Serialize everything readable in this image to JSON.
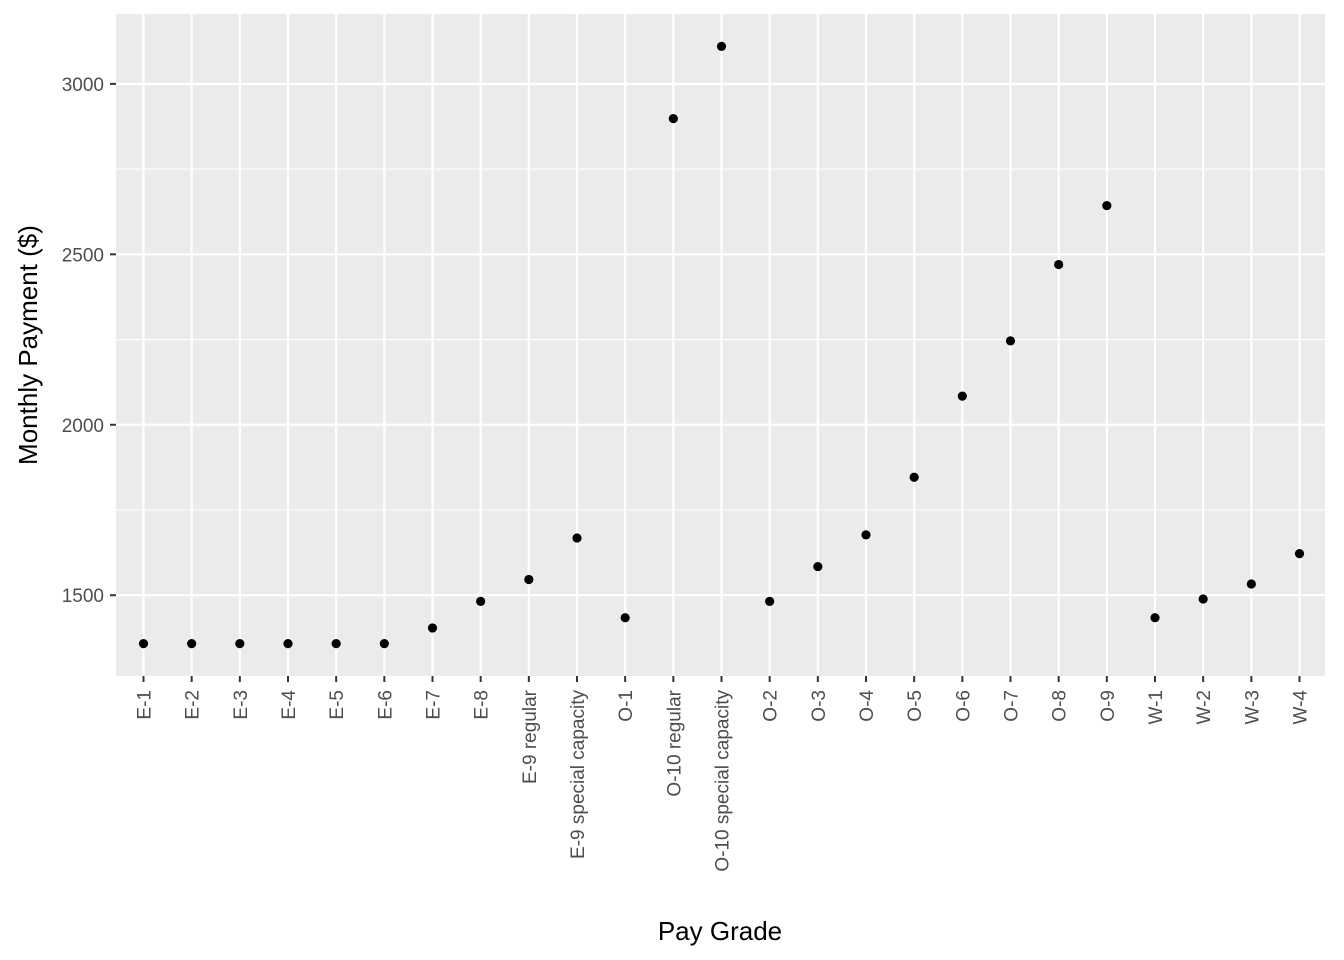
{
  "chart_data": {
    "type": "scatter",
    "xlabel": "Pay Grade",
    "ylabel": "Monthly Payment ($)",
    "categories": [
      "E-1",
      "E-2",
      "E-3",
      "E-4",
      "E-5",
      "E-6",
      "E-7",
      "E-8",
      "E-9 regular",
      "E-9 special capacity",
      "O-1",
      "O-10 regular",
      "O-10 special capacity",
      "O-2",
      "O-3",
      "O-4",
      "O-5",
      "O-6",
      "O-7",
      "O-8",
      "O-9",
      "W-1",
      "W-2",
      "W-3",
      "W-4"
    ],
    "values": [
      1358,
      1358,
      1358,
      1358,
      1358,
      1358,
      1404,
      1482,
      1546,
      1668,
      1434,
      2898,
      3110,
      1482,
      1584,
      1677,
      1846,
      2084,
      2246,
      2470,
      2643,
      1434,
      1489,
      1533,
      1622
    ],
    "yticks": [
      1500,
      2000,
      2500,
      3000
    ],
    "ylim": [
      1263,
      3205
    ],
    "grid": true,
    "legend": "none",
    "colors": {
      "panel": "#ebebeb",
      "grid": "#ffffff",
      "point": "#000000"
    }
  }
}
